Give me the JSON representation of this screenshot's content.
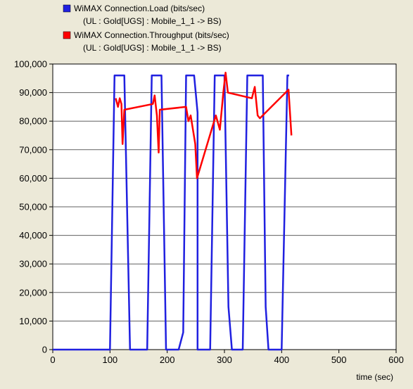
{
  "chart_data": {
    "type": "line",
    "title": "",
    "xlabel": "time (sec)",
    "ylabel": "",
    "xlim": [
      0,
      600
    ],
    "ylim": [
      0,
      100000
    ],
    "x_ticks": [
      0,
      100,
      200,
      300,
      400,
      500,
      600
    ],
    "y_ticks": [
      0,
      10000,
      20000,
      30000,
      40000,
      50000,
      60000,
      70000,
      80000,
      90000,
      100000
    ],
    "x_tick_labels": [
      "0",
      "100",
      "200",
      "300",
      "400",
      "500",
      "600"
    ],
    "y_tick_labels": [
      "0",
      "10,000",
      "20,000",
      "30,000",
      "40,000",
      "50,000",
      "60,000",
      "70,000",
      "80,000",
      "90,000",
      "100,000"
    ],
    "grid": true,
    "legend_position": "top-left",
    "series": [
      {
        "name": "WiMAX Connection.Load (bits/sec)",
        "subtitle": "(UL : Gold[UGS] : Mobile_1_1 -> BS)",
        "color": "#2020e0",
        "points": [
          [
            0,
            0
          ],
          [
            100,
            0
          ],
          [
            108,
            96000
          ],
          [
            125,
            96000
          ],
          [
            135,
            0
          ],
          [
            165,
            0
          ],
          [
            173,
            96000
          ],
          [
            190,
            96000
          ],
          [
            198,
            0
          ],
          [
            220,
            0
          ],
          [
            228,
            6000
          ],
          [
            233,
            96000
          ],
          [
            247,
            96000
          ],
          [
            253,
            83000
          ],
          [
            253,
            0
          ],
          [
            275,
            0
          ],
          [
            283,
            96000
          ],
          [
            300,
            96000
          ],
          [
            307,
            15000
          ],
          [
            313,
            0
          ],
          [
            332,
            0
          ],
          [
            340,
            96000
          ],
          [
            348,
            96000
          ],
          [
            367,
            96000
          ],
          [
            372,
            15000
          ],
          [
            377,
            0
          ],
          [
            400,
            0
          ],
          [
            410,
            96000
          ],
          [
            413,
            96000
          ]
        ]
      },
      {
        "name": "WiMAX Connection.Throughput (bits/sec)",
        "subtitle": "(UL : Gold[UGS] : Mobile_1_1 -> BS)",
        "color": "#ff0000",
        "points": [
          [
            110,
            88000
          ],
          [
            114,
            85000
          ],
          [
            117,
            88000
          ],
          [
            120,
            86000
          ],
          [
            122,
            72000
          ],
          [
            125,
            84000
          ],
          [
            175,
            86000
          ],
          [
            178,
            89000
          ],
          [
            182,
            82000
          ],
          [
            185,
            69000
          ],
          [
            187,
            84000
          ],
          [
            233,
            85000
          ],
          [
            237,
            80000
          ],
          [
            241,
            82000
          ],
          [
            249,
            72000
          ],
          [
            252,
            60000
          ],
          [
            285,
            82000
          ],
          [
            292,
            77000
          ],
          [
            298,
            90000
          ],
          [
            302,
            97000
          ],
          [
            306,
            90000
          ],
          [
            348,
            88000
          ],
          [
            353,
            92000
          ],
          [
            358,
            82000
          ],
          [
            362,
            81000
          ],
          [
            412,
            91000
          ],
          [
            417,
            75000
          ]
        ]
      }
    ]
  }
}
